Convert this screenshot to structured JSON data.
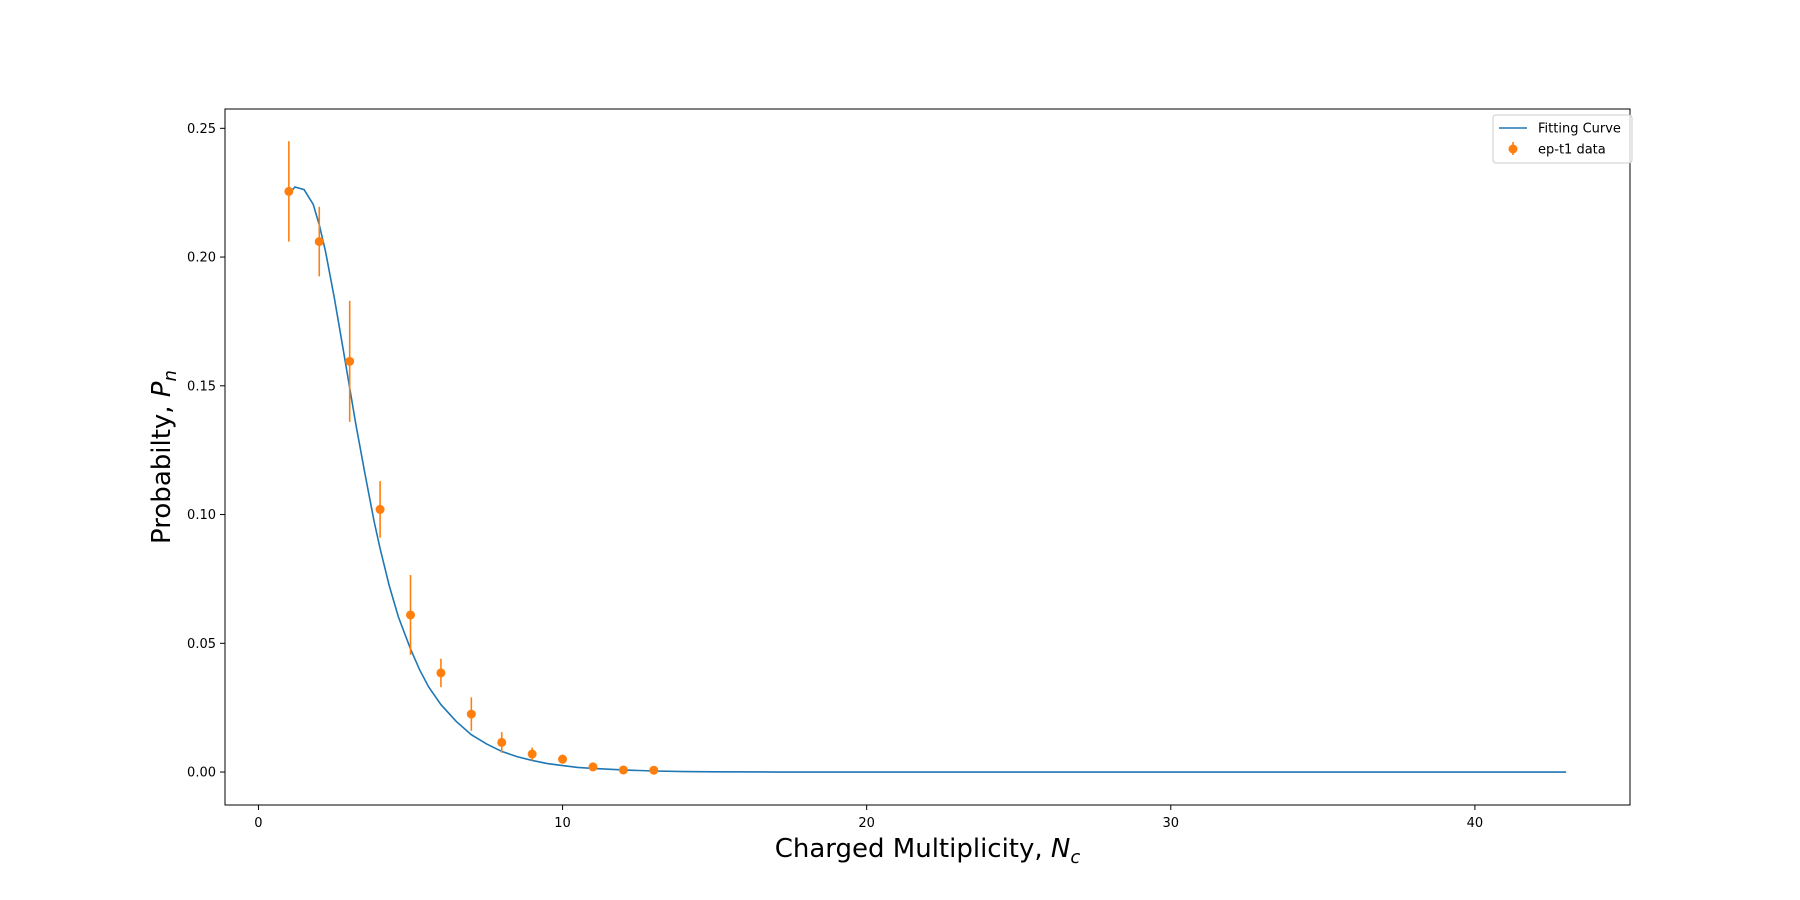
{
  "chart_data": {
    "type": "scatter",
    "title": "",
    "xlabel": {
      "main": "Charged Multiplicity, ",
      "var": "N",
      "sub": "c"
    },
    "ylabel": {
      "main": "Probabilty, ",
      "var": "P",
      "sub": "n"
    },
    "xlim": [
      -1.1,
      45.1
    ],
    "ylim": [
      -0.0128,
      0.2575
    ],
    "grid": false,
    "legend_position": "top-right",
    "x_ticks": [
      0,
      10,
      20,
      30,
      40
    ],
    "x_tick_labels": [
      "0",
      "10",
      "20",
      "30",
      "40"
    ],
    "y_ticks": [
      0.0,
      0.05,
      0.1,
      0.15,
      0.2,
      0.25
    ],
    "y_tick_labels": [
      "0.00",
      "0.05",
      "0.10",
      "0.15",
      "0.20",
      "0.25"
    ],
    "series": [
      {
        "name": "Fitting Curve",
        "kind": "line",
        "color": "#1f77b4",
        "x": [
          1.0,
          1.2,
          1.5,
          1.8,
          2.0,
          2.2,
          2.5,
          2.8,
          3.0,
          3.2,
          3.5,
          3.8,
          4.0,
          4.3,
          4.6,
          5.0,
          5.3,
          5.6,
          6.0,
          6.5,
          7.0,
          7.5,
          8.0,
          8.5,
          9.0,
          9.5,
          10.0,
          10.5,
          11.0,
          12.0,
          13.0,
          14.0,
          15.0,
          17.0,
          20.0,
          25.0,
          30.0,
          35.0,
          40.0,
          43.0
        ],
        "y": [
          0.2245,
          0.2272,
          0.2262,
          0.2205,
          0.2125,
          0.2025,
          0.1838,
          0.1632,
          0.1492,
          0.1352,
          0.116,
          0.0975,
          0.0868,
          0.0724,
          0.0603,
          0.0478,
          0.0397,
          0.033,
          0.0262,
          0.0197,
          0.0145,
          0.0109,
          0.008,
          0.006,
          0.0045,
          0.0033,
          0.0025,
          0.0018,
          0.0014,
          0.0008,
          0.0004,
          0.0002,
          0.0001,
          0.0,
          0.0,
          0.0,
          0.0,
          0.0,
          0.0,
          0.0
        ]
      },
      {
        "name": "ep-t1 data",
        "kind": "errorbar",
        "color": "#ff7f0e",
        "x": [
          1,
          2,
          3,
          4,
          5,
          6,
          7,
          8,
          9,
          10,
          11,
          12,
          13
        ],
        "y": [
          0.2255,
          0.206,
          0.1595,
          0.102,
          0.061,
          0.0385,
          0.0225,
          0.0115,
          0.007,
          0.005,
          0.002,
          0.0008,
          0.0007
        ],
        "yerr": [
          0.0195,
          0.0135,
          0.0235,
          0.011,
          0.0155,
          0.0055,
          0.0065,
          0.004,
          0.0025,
          0.0018,
          0.0015,
          0.0005,
          0.0004
        ]
      }
    ]
  }
}
